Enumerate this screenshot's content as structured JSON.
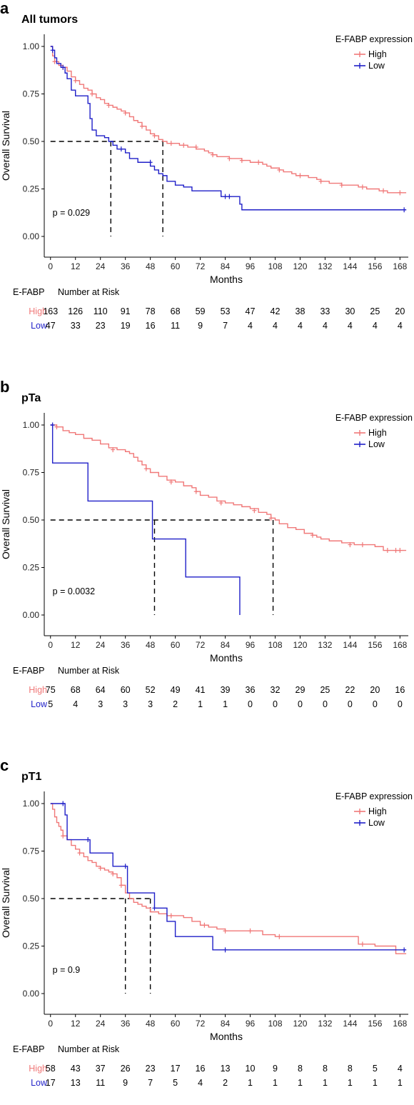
{
  "colors": {
    "high": "#f07878",
    "low": "#1f1fc8"
  },
  "risk_x": [
    0,
    12,
    24,
    36,
    48,
    60,
    72,
    84,
    96,
    108,
    120,
    132,
    144,
    156,
    168
  ],
  "chart_data": [
    {
      "panel_letter": "a",
      "type": "line",
      "title": "All tumors",
      "xlabel": "Months",
      "ylabel": "Overall Survival",
      "xlim": [
        -3,
        172
      ],
      "ylim": [
        0,
        1
      ],
      "xticks": [
        "0",
        "12",
        "24",
        "36",
        "48",
        "60",
        "72",
        "84",
        "96",
        "108",
        "120",
        "132",
        "144",
        "156",
        "168"
      ],
      "yticks": [
        "0.00",
        "0.25",
        "0.50",
        "0.75",
        "1.00"
      ],
      "legend_title": "E-FABP expression",
      "legend_placement": "top-right",
      "pvalue": "p = 0.029",
      "medians": [
        29,
        54
      ],
      "series": [
        {
          "name": "High",
          "color_key": "high",
          "x": [
            0,
            1,
            2,
            4,
            6,
            8,
            10,
            12,
            14,
            16,
            18,
            20,
            22,
            24,
            26,
            28,
            30,
            32,
            34,
            36,
            38,
            40,
            42,
            44,
            46,
            48,
            50,
            52,
            54,
            56,
            58,
            60,
            62,
            64,
            66,
            68,
            70,
            72,
            74,
            76,
            78,
            80,
            82,
            84,
            86,
            88,
            90,
            92,
            94,
            96,
            98,
            100,
            102,
            104,
            106,
            108,
            110,
            112,
            114,
            116,
            118,
            120,
            122,
            124,
            126,
            128,
            130,
            132,
            134,
            136,
            138,
            140,
            142,
            144,
            146,
            148,
            150,
            152,
            154,
            156,
            158,
            160,
            162,
            164,
            166,
            168,
            171
          ],
          "y": [
            1.0,
            0.95,
            0.92,
            0.9,
            0.89,
            0.87,
            0.84,
            0.82,
            0.8,
            0.78,
            0.77,
            0.75,
            0.73,
            0.72,
            0.7,
            0.69,
            0.68,
            0.67,
            0.66,
            0.65,
            0.63,
            0.61,
            0.6,
            0.58,
            0.56,
            0.54,
            0.53,
            0.51,
            0.5,
            0.49,
            0.49,
            0.49,
            0.48,
            0.48,
            0.47,
            0.47,
            0.46,
            0.46,
            0.45,
            0.44,
            0.43,
            0.42,
            0.42,
            0.42,
            0.41,
            0.41,
            0.41,
            0.4,
            0.4,
            0.39,
            0.39,
            0.39,
            0.38,
            0.37,
            0.36,
            0.36,
            0.35,
            0.34,
            0.34,
            0.33,
            0.32,
            0.32,
            0.32,
            0.31,
            0.31,
            0.3,
            0.29,
            0.29,
            0.28,
            0.28,
            0.28,
            0.27,
            0.27,
            0.27,
            0.27,
            0.26,
            0.26,
            0.25,
            0.25,
            0.25,
            0.24,
            0.24,
            0.23,
            0.23,
            0.23,
            0.23,
            0.23
          ],
          "censor_x": [
            2,
            6,
            12,
            20,
            28,
            36,
            44,
            50,
            58,
            64,
            70,
            78,
            86,
            92,
            100,
            110,
            120,
            130,
            140,
            150,
            160,
            168
          ],
          "censor_y": [
            0.92,
            0.89,
            0.82,
            0.75,
            0.69,
            0.65,
            0.58,
            0.53,
            0.49,
            0.48,
            0.47,
            0.43,
            0.41,
            0.4,
            0.39,
            0.35,
            0.32,
            0.29,
            0.27,
            0.26,
            0.24,
            0.23
          ]
        },
        {
          "name": "Low",
          "color_key": "low",
          "x": [
            0,
            1,
            2,
            3,
            5,
            7,
            8,
            10,
            12,
            14,
            16,
            18,
            19,
            20,
            22,
            24,
            26,
            28,
            30,
            32,
            34,
            36,
            38,
            42,
            44,
            48,
            50,
            52,
            54,
            56,
            60,
            64,
            66,
            68,
            72,
            78,
            82,
            86,
            90,
            91,
            92,
            171
          ],
          "y": [
            1.0,
            0.98,
            0.94,
            0.91,
            0.89,
            0.86,
            0.83,
            0.77,
            0.74,
            0.74,
            0.74,
            0.7,
            0.62,
            0.56,
            0.53,
            0.53,
            0.52,
            0.5,
            0.48,
            0.46,
            0.46,
            0.44,
            0.41,
            0.39,
            0.39,
            0.37,
            0.35,
            0.33,
            0.32,
            0.29,
            0.27,
            0.26,
            0.26,
            0.24,
            0.24,
            0.24,
            0.21,
            0.21,
            0.21,
            0.17,
            0.14,
            0.14
          ],
          "censor_x": [
            1,
            6,
            34,
            48,
            84,
            86,
            170
          ],
          "censor_y": [
            0.98,
            0.89,
            0.46,
            0.39,
            0.21,
            0.21,
            0.14
          ]
        }
      ],
      "risk": {
        "header_group": "E-FABP",
        "header_title": "Number at Risk",
        "high": [
          "163",
          "126",
          "110",
          "91",
          "78",
          "68",
          "59",
          "53",
          "47",
          "42",
          "38",
          "33",
          "30",
          "25",
          "20"
        ],
        "low": [
          "47",
          "33",
          "23",
          "19",
          "16",
          "11",
          "9",
          "7",
          "4",
          "4",
          "4",
          "4",
          "4",
          "4",
          "4"
        ]
      }
    },
    {
      "panel_letter": "b",
      "type": "line",
      "title": "pTa",
      "xlabel": "Months",
      "ylabel": "Overall Survival",
      "xlim": [
        -3,
        172
      ],
      "ylim": [
        0,
        1
      ],
      "xticks": [
        "0",
        "12",
        "24",
        "36",
        "48",
        "60",
        "72",
        "84",
        "96",
        "108",
        "120",
        "132",
        "144",
        "156",
        "168"
      ],
      "yticks": [
        "0.00",
        "0.25",
        "0.50",
        "0.75",
        "1.00"
      ],
      "legend_title": "E-FABP expression",
      "legend_placement": "top-right",
      "pvalue": "p = 0.0032",
      "medians": [
        50,
        107
      ],
      "series": [
        {
          "name": "High",
          "color_key": "high",
          "x": [
            0,
            3,
            6,
            9,
            12,
            16,
            20,
            24,
            28,
            32,
            36,
            38,
            40,
            42,
            44,
            46,
            48,
            52,
            56,
            60,
            64,
            68,
            70,
            72,
            76,
            80,
            84,
            88,
            92,
            96,
            100,
            104,
            106,
            108,
            110,
            114,
            118,
            122,
            126,
            128,
            130,
            134,
            140,
            146,
            152,
            156,
            160,
            166,
            171
          ],
          "y": [
            1.0,
            0.99,
            0.97,
            0.96,
            0.95,
            0.93,
            0.92,
            0.9,
            0.88,
            0.87,
            0.86,
            0.85,
            0.83,
            0.81,
            0.79,
            0.77,
            0.75,
            0.73,
            0.71,
            0.7,
            0.68,
            0.67,
            0.65,
            0.63,
            0.62,
            0.6,
            0.59,
            0.58,
            0.57,
            0.56,
            0.54,
            0.53,
            0.51,
            0.5,
            0.48,
            0.46,
            0.45,
            0.43,
            0.42,
            0.41,
            0.4,
            0.39,
            0.38,
            0.37,
            0.37,
            0.36,
            0.34,
            0.34,
            0.34
          ],
          "censor_x": [
            3,
            30,
            46,
            58,
            70,
            82,
            98,
            106,
            126,
            144,
            150,
            162,
            166,
            168
          ],
          "censor_y": [
            0.99,
            0.87,
            0.77,
            0.7,
            0.65,
            0.59,
            0.55,
            0.51,
            0.42,
            0.37,
            0.37,
            0.34,
            0.34,
            0.34
          ]
        },
        {
          "name": "Low",
          "color_key": "low",
          "x": [
            0,
            1,
            18,
            49,
            65,
            91,
            91
          ],
          "y": [
            1.0,
            0.8,
            0.6,
            0.4,
            0.2,
            0.2,
            0.0
          ],
          "censor_x": [
            1
          ],
          "censor_y": [
            1.0
          ]
        }
      ],
      "risk": {
        "header_group": "E-FABP",
        "header_title": "Number at Risk",
        "high": [
          "75",
          "68",
          "64",
          "60",
          "52",
          "49",
          "41",
          "39",
          "36",
          "32",
          "29",
          "25",
          "22",
          "20",
          "16"
        ],
        "low": [
          "5",
          "4",
          "3",
          "3",
          "3",
          "2",
          "1",
          "1",
          "0",
          "0",
          "0",
          "0",
          "0",
          "0",
          "0"
        ]
      }
    },
    {
      "panel_letter": "c",
      "type": "line",
      "title": "pT1",
      "xlabel": "Months",
      "ylabel": "Overall Survival",
      "xlim": [
        -3,
        172
      ],
      "ylim": [
        0,
        1
      ],
      "xticks": [
        "0",
        "12",
        "24",
        "36",
        "48",
        "60",
        "72",
        "84",
        "96",
        "108",
        "120",
        "132",
        "144",
        "156",
        "168"
      ],
      "yticks": [
        "0.00",
        "0.25",
        "0.50",
        "0.75",
        "1.00"
      ],
      "legend_title": "E-FABP expression",
      "legend_placement": "top-right",
      "pvalue": "p = 0.9",
      "medians": [
        36,
        48
      ],
      "series": [
        {
          "name": "High",
          "color_key": "high",
          "x": [
            0,
            1,
            2,
            3,
            4,
            5,
            6,
            8,
            10,
            12,
            14,
            16,
            18,
            20,
            22,
            24,
            26,
            28,
            30,
            32,
            34,
            36,
            38,
            40,
            42,
            44,
            46,
            48,
            52,
            56,
            60,
            64,
            68,
            72,
            76,
            80,
            84,
            88,
            92,
            96,
            102,
            108,
            120,
            132,
            144,
            148,
            150,
            156,
            166,
            171
          ],
          "y": [
            1.0,
            0.97,
            0.93,
            0.9,
            0.88,
            0.86,
            0.83,
            0.81,
            0.78,
            0.76,
            0.74,
            0.72,
            0.7,
            0.69,
            0.67,
            0.66,
            0.65,
            0.64,
            0.63,
            0.61,
            0.57,
            0.53,
            0.5,
            0.48,
            0.47,
            0.46,
            0.45,
            0.43,
            0.42,
            0.41,
            0.41,
            0.4,
            0.38,
            0.36,
            0.35,
            0.34,
            0.33,
            0.33,
            0.33,
            0.33,
            0.31,
            0.3,
            0.3,
            0.3,
            0.3,
            0.26,
            0.26,
            0.25,
            0.21,
            0.21
          ],
          "censor_x": [
            6,
            14,
            24,
            30,
            34,
            58,
            74,
            84,
            96,
            110,
            150
          ],
          "censor_y": [
            0.83,
            0.74,
            0.66,
            0.63,
            0.57,
            0.41,
            0.36,
            0.33,
            0.33,
            0.3,
            0.26
          ]
        },
        {
          "name": "Low",
          "color_key": "low",
          "x": [
            0,
            6,
            7,
            8,
            18,
            19,
            26,
            30,
            36,
            37,
            50,
            52,
            56,
            60,
            64,
            74,
            78,
            171
          ],
          "y": [
            1.0,
            1.0,
            0.94,
            0.81,
            0.81,
            0.74,
            0.74,
            0.67,
            0.67,
            0.53,
            0.45,
            0.45,
            0.38,
            0.3,
            0.3,
            0.3,
            0.23,
            0.23
          ],
          "censor_x": [
            6,
            18,
            36,
            50,
            84,
            170
          ],
          "censor_y": [
            1.0,
            0.81,
            0.67,
            0.45,
            0.23,
            0.23
          ]
        }
      ],
      "risk": {
        "header_group": "E-FABP",
        "header_title": "Number at Risk",
        "high": [
          "58",
          "43",
          "37",
          "26",
          "23",
          "17",
          "16",
          "13",
          "10",
          "9",
          "8",
          "8",
          "8",
          "5",
          "4"
        ],
        "low": [
          "17",
          "13",
          "11",
          "9",
          "7",
          "5",
          "4",
          "2",
          "1",
          "1",
          "1",
          "1",
          "1",
          "1",
          "1"
        ]
      }
    }
  ]
}
